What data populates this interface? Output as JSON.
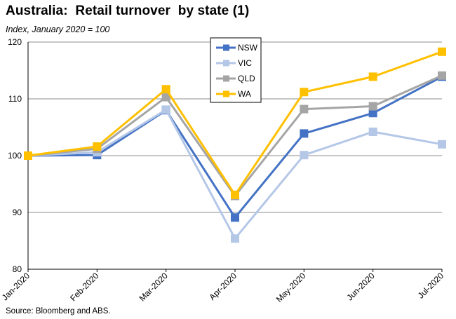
{
  "title": "Australia:  Retail turnover  by state (1)",
  "subtitle": "Index, January 2020 = 100",
  "source": "Source: Bloomberg and ABS.",
  "chart_data": {
    "type": "line",
    "categories": [
      "Jan-2020",
      "Feb-2020",
      "Mar-2020",
      "Apr-2020",
      "May-2020",
      "Jun-2020",
      "Jul-2020"
    ],
    "ylim": [
      80,
      120
    ],
    "yticks": [
      80,
      90,
      100,
      110,
      120
    ],
    "grid": true,
    "legend_position": "top-center",
    "series": [
      {
        "name": "NSW",
        "color": "#4472C4",
        "values": [
          100,
          100.1,
          108,
          89.1,
          103.9,
          107.5,
          113.9
        ]
      },
      {
        "name": "VIC",
        "color": "#B4C7E7",
        "values": [
          100,
          100.6,
          108.1,
          85.4,
          100.1,
          104.2,
          102
        ]
      },
      {
        "name": "QLD",
        "color": "#A5A5A5",
        "values": [
          100,
          101.2,
          110.3,
          92.9,
          108.2,
          108.7,
          114.1
        ]
      },
      {
        "name": "WA",
        "color": "#FFC000",
        "values": [
          100,
          101.6,
          111.7,
          93.1,
          111.2,
          113.9,
          118.3
        ]
      }
    ]
  }
}
